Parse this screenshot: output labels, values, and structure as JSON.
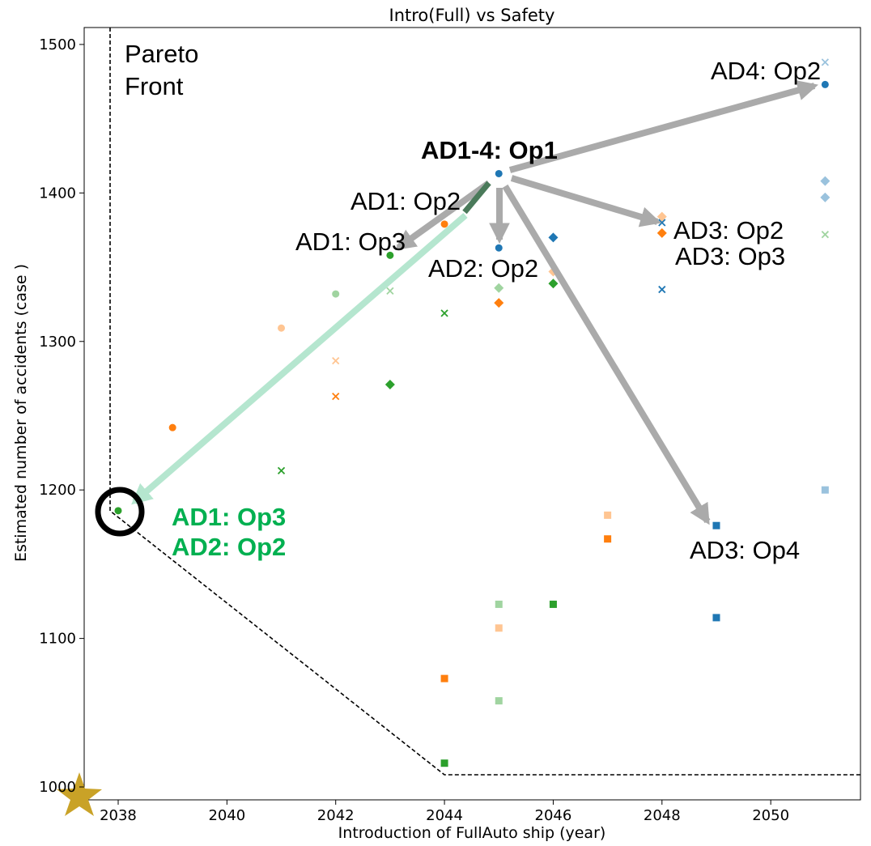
{
  "chart_data": {
    "type": "scatter",
    "title": "Intro(Full) vs Safety",
    "x_label": "Introduction of FullAuto ship (year)",
    "y_label": "Estimated number of accidents (case )",
    "xlim": [
      2037.375,
      2051.65
    ],
    "ylim": [
      991.3,
      1511.4
    ],
    "xticks": [
      2038,
      2040,
      2042,
      2044,
      2046,
      2048,
      2050
    ],
    "yticks": [
      1000,
      1100,
      1200,
      1300,
      1400,
      1500
    ],
    "annotations": [
      "Pareto",
      "Front",
      "AD4: Op2",
      "AD1-4: Op1",
      "AD1: Op2",
      "AD1: Op3",
      "AD3: Op2",
      "AD3: Op3",
      "AD2: Op2",
      "AD1: Op3",
      "AD2: Op2",
      "AD3: Op4"
    ],
    "series": [
      {
        "color": "#1f77b4",
        "marker": "circle",
        "opacity": 1,
        "x": [
          2045,
          2045,
          2051
        ],
        "values": [
          1413,
          1363,
          1473
        ]
      },
      {
        "color": "#1f77b4",
        "marker": "diamond",
        "opacity": 0.45,
        "x": [
          2051,
          2051
        ],
        "values": [
          1397,
          1408
        ]
      },
      {
        "color": "#1f77b4",
        "marker": "x",
        "opacity": 0.45,
        "x": [
          2051
        ],
        "values": [
          1488
        ]
      },
      {
        "color": "#1f77b4",
        "marker": "x",
        "opacity": 1,
        "x": [
          2048,
          2048
        ],
        "values": [
          1380,
          1335
        ]
      },
      {
        "color": "#1f77b4",
        "marker": "diamond",
        "opacity": 1,
        "x": [
          2046
        ],
        "values": [
          1370
        ]
      },
      {
        "color": "#1f77b4",
        "marker": "square",
        "opacity": 1,
        "x": [
          2049,
          2049
        ],
        "values": [
          1176,
          1114
        ]
      },
      {
        "color": "#1f77b4",
        "marker": "square",
        "opacity": 0.45,
        "x": [
          2051
        ],
        "values": [
          1200
        ]
      },
      {
        "color": "#ff7f0e",
        "marker": "circle",
        "opacity": 1,
        "x": [
          2039,
          2044
        ],
        "values": [
          1242,
          1379
        ]
      },
      {
        "color": "#ff7f0e",
        "marker": "circle",
        "opacity": 0.45,
        "x": [
          2041
        ],
        "values": [
          1309
        ]
      },
      {
        "color": "#ff7f0e",
        "marker": "x",
        "opacity": 1,
        "x": [
          2042
        ],
        "values": [
          1263
        ]
      },
      {
        "color": "#ff7f0e",
        "marker": "x",
        "opacity": 0.45,
        "x": [
          2042
        ],
        "values": [
          1287
        ]
      },
      {
        "color": "#ff7f0e",
        "marker": "diamond",
        "opacity": 1,
        "x": [
          2048,
          2045
        ],
        "values": [
          1373,
          1326
        ]
      },
      {
        "color": "#ff7f0e",
        "marker": "diamond",
        "opacity": 0.45,
        "x": [
          2048,
          2046
        ],
        "values": [
          1384,
          1347
        ]
      },
      {
        "color": "#ff7f0e",
        "marker": "square",
        "opacity": 1,
        "x": [
          2044,
          2047
        ],
        "values": [
          1073,
          1167
        ]
      },
      {
        "color": "#ff7f0e",
        "marker": "square",
        "opacity": 0.45,
        "x": [
          2045,
          2047
        ],
        "values": [
          1107,
          1183
        ]
      },
      {
        "color": "#2ca02c",
        "marker": "circle",
        "opacity": 1,
        "x": [
          2038,
          2043
        ],
        "values": [
          1186,
          1358
        ]
      },
      {
        "color": "#2ca02c",
        "marker": "circle",
        "opacity": 0.45,
        "x": [
          2042
        ],
        "values": [
          1332
        ]
      },
      {
        "color": "#2ca02c",
        "marker": "x",
        "opacity": 1,
        "x": [
          2041,
          2044
        ],
        "values": [
          1213,
          1319
        ]
      },
      {
        "color": "#2ca02c",
        "marker": "x",
        "opacity": 0.45,
        "x": [
          2043,
          2051
        ],
        "values": [
          1334,
          1372
        ]
      },
      {
        "color": "#2ca02c",
        "marker": "diamond",
        "opacity": 1,
        "x": [
          2043,
          2046
        ],
        "values": [
          1271,
          1339
        ]
      },
      {
        "color": "#2ca02c",
        "marker": "diamond",
        "opacity": 0.45,
        "x": [
          2045
        ],
        "values": [
          1336
        ]
      },
      {
        "color": "#2ca02c",
        "marker": "square",
        "opacity": 1,
        "x": [
          2044,
          2046
        ],
        "values": [
          1016,
          1123
        ]
      },
      {
        "color": "#2ca02c",
        "marker": "square",
        "opacity": 0.45,
        "x": [
          2045,
          2045
        ],
        "values": [
          1123,
          1058
        ]
      }
    ]
  }
}
